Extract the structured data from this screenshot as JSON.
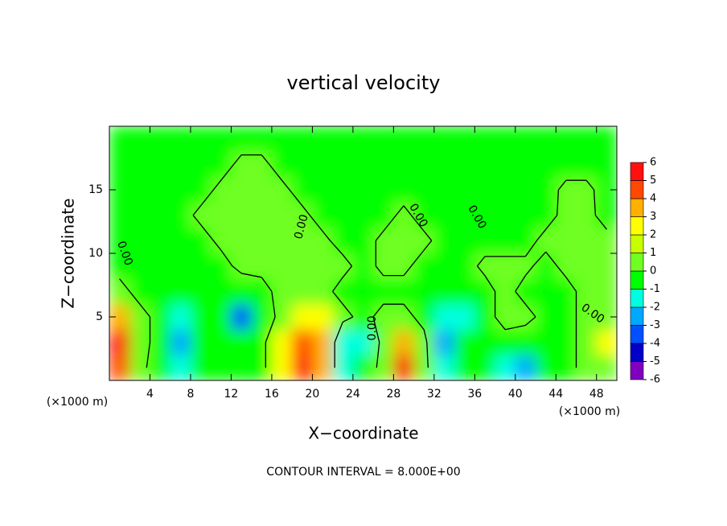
{
  "chart_data": {
    "type": "contour",
    "title": "vertical velocity",
    "x_label": "X−coordinate",
    "y_label": "Z−coordinate",
    "x_unit": "(×1000 m)",
    "y_unit": "(×1000 m)",
    "footer": "CONTOUR INTERVAL = 8.000E+00",
    "xlim": [
      0,
      50
    ],
    "ylim": [
      0,
      20
    ],
    "xticks": [
      4,
      8,
      12,
      16,
      20,
      24,
      28,
      32,
      36,
      40,
      44,
      48
    ],
    "yticks": [
      5,
      10,
      15
    ],
    "x": [
      1,
      3,
      5,
      7,
      9,
      11,
      13,
      15,
      17,
      19,
      21,
      23,
      25,
      27,
      29,
      31,
      33,
      35,
      37,
      39,
      41,
      43,
      45,
      47,
      49
    ],
    "y": [
      1,
      3,
      5,
      7,
      9,
      11,
      13,
      15,
      17,
      19
    ],
    "z": [
      [
        4,
        0.5,
        -1,
        -2,
        -0.5,
        -0.5,
        -1,
        -0.5,
        2,
        5,
        3,
        -2,
        -1,
        0.5,
        5,
        0.5,
        -2,
        -1,
        -0.5,
        -2,
        -3,
        -0.5,
        -0.5,
        0.5,
        0.5
      ],
      [
        5,
        0.5,
        -0.5,
        -3,
        -0.5,
        -0.5,
        -1,
        -0.5,
        2,
        4,
        3,
        -2,
        -2,
        0.5,
        3,
        0.5,
        -3,
        -1,
        -0.5,
        -0.5,
        -1,
        -0.5,
        -0.5,
        0.5,
        2
      ],
      [
        3,
        0.5,
        -0.5,
        -2,
        -0.5,
        -0.5,
        -4,
        -1,
        0.5,
        2,
        2,
        0.5,
        -0.5,
        0.5,
        0.5,
        -0.5,
        -2,
        -2,
        -0.5,
        0.5,
        0.5,
        -0.5,
        -0.5,
        0.5,
        0.5
      ],
      [
        0.5,
        -0.5,
        -0.5,
        -0.5,
        -0.5,
        -1,
        -1,
        -0.5,
        0.5,
        0.5,
        0.5,
        -0.5,
        -0.5,
        -0.5,
        -0.5,
        -0.5,
        -1,
        -1,
        -0.5,
        0.5,
        -0.5,
        -0.5,
        -0.5,
        0.5,
        0.5
      ],
      [
        -0.5,
        -0.5,
        -0.5,
        -0.5,
        -0.5,
        -0.5,
        0.4,
        0.4,
        0.4,
        0.4,
        0.4,
        0.4,
        -0.5,
        0.3,
        0.3,
        -0.5,
        -0.5,
        -0.5,
        0.3,
        0.3,
        0.3,
        -0.5,
        0.4,
        0.4,
        0.4
      ],
      [
        -0.5,
        -0.5,
        -0.5,
        -0.5,
        -0.5,
        0.3,
        0.3,
        0.3,
        0.3,
        0.3,
        0.3,
        -0.5,
        -0.5,
        0.3,
        0.3,
        0.3,
        -0.5,
        -0.5,
        -0.5,
        -0.5,
        -0.5,
        0.4,
        0.4,
        0.4,
        0.4
      ],
      [
        -0.5,
        -0.5,
        -0.5,
        -0.5,
        0.3,
        0.3,
        0.3,
        0.3,
        0.3,
        0.3,
        -0.5,
        -0.5,
        -0.5,
        -0.5,
        0.3,
        -0.5,
        -0.5,
        -0.5,
        -0.5,
        -0.5,
        -0.5,
        -0.5,
        0.4,
        0.4,
        -0.5
      ],
      [
        -0.5,
        -0.5,
        -0.5,
        -0.5,
        -0.5,
        0.3,
        0.3,
        0.3,
        0.3,
        -0.5,
        -0.5,
        -0.5,
        -0.5,
        -0.5,
        -0.5,
        -0.5,
        -0.5,
        -0.5,
        -0.5,
        -0.5,
        -0.5,
        -0.5,
        0.3,
        0.3,
        -0.5
      ],
      [
        -0.5,
        -0.5,
        -0.5,
        -0.5,
        -0.5,
        -0.5,
        0.3,
        0.3,
        -0.5,
        -0.5,
        -0.5,
        -0.5,
        -0.5,
        -0.5,
        -0.5,
        -0.5,
        -0.5,
        -0.5,
        -0.5,
        -0.5,
        -0.5,
        -0.5,
        -0.5,
        -0.5,
        -0.5
      ],
      [
        -0.5,
        -0.5,
        -0.5,
        -0.5,
        -0.5,
        -0.5,
        -0.5,
        -0.5,
        -0.5,
        -0.5,
        -0.5,
        -0.5,
        -0.5,
        -0.5,
        -0.5,
        -0.5,
        -0.5,
        -0.5,
        -0.5,
        -0.5,
        -0.5,
        -0.5,
        -0.5,
        -0.5,
        -0.5
      ]
    ],
    "levels": [
      -6,
      -5,
      -4,
      -3,
      -2,
      -1,
      0,
      1,
      2,
      3,
      4,
      5,
      6
    ],
    "colors": [
      "#8000c0",
      "#0000c8",
      "#0050ff",
      "#00a8ff",
      "#00ffe0",
      "#00ff00",
      "#70ff20",
      "#c8ff00",
      "#ffff00",
      "#ffb000",
      "#ff4800",
      "#ff1010"
    ],
    "contour_levels": [
      {
        "value": 0,
        "label": "0.00"
      }
    ]
  }
}
